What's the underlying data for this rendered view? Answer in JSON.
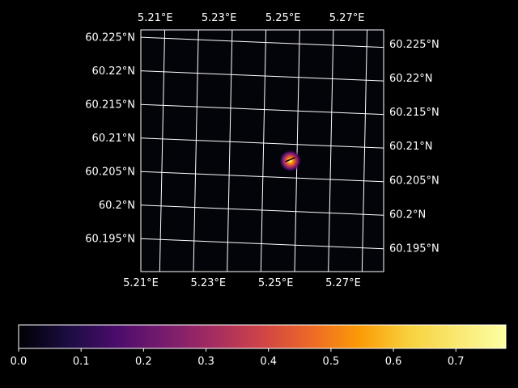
{
  "chart_data": {
    "type": "heatmap",
    "title": "",
    "xlabel": "",
    "ylabel": "",
    "x_range": [
      5.21,
      5.282
    ],
    "y_range": [
      60.19,
      60.226
    ],
    "top_axis": {
      "range": [
        5.2055,
        5.2815
      ],
      "ticks": [
        5.21,
        5.23,
        5.25,
        5.27
      ],
      "labels": [
        "5.21°E",
        "5.23°E",
        "5.25°E",
        "5.27°E"
      ]
    },
    "bottom_axis": {
      "ticks": [
        5.21,
        5.23,
        5.25,
        5.27
      ],
      "labels": [
        "5.21°E",
        "5.23°E",
        "5.25°E",
        "5.27°E"
      ]
    },
    "left_axis": {
      "ticks": [
        60.195,
        60.2,
        60.205,
        60.21,
        60.215,
        60.22,
        60.225
      ],
      "labels": [
        "60.195°N",
        "60.2°N",
        "60.205°N",
        "60.21°N",
        "60.215°N",
        "60.22°N",
        "60.225°N"
      ]
    },
    "right_axis": {
      "range": [
        60.1915,
        60.227
      ],
      "ticks": [
        60.195,
        60.2,
        60.205,
        60.21,
        60.215,
        60.22,
        60.225
      ],
      "labels": [
        "60.195°N",
        "60.2°N",
        "60.205°N",
        "60.21°N",
        "60.215°N",
        "60.22°N",
        "60.225°N"
      ]
    },
    "graticule": {
      "meridians": [
        5.2155,
        5.2255,
        5.2355,
        5.2455,
        5.2555,
        5.2655,
        5.2755
      ],
      "parallels": [
        60.195,
        60.2,
        60.205,
        60.21,
        60.215,
        60.22,
        60.225
      ],
      "meridian_skew": 0.0017,
      "parallel_tilt": -0.0017,
      "color": "#ffffff"
    },
    "hotspot": {
      "lon": 5.2543,
      "lat": 60.2065,
      "peak": 0.78
    },
    "grid": true,
    "colorbar": {
      "colormap": "inferno",
      "range": [
        0,
        0.78
      ],
      "ticks": [
        0.0,
        0.1,
        0.2,
        0.3,
        0.4,
        0.5,
        0.6,
        0.7
      ],
      "labels": [
        "0.0",
        "0.1",
        "0.2",
        "0.3",
        "0.4",
        "0.5",
        "0.6",
        "0.7"
      ],
      "orientation": "horizontal",
      "placement": "bottom"
    }
  }
}
